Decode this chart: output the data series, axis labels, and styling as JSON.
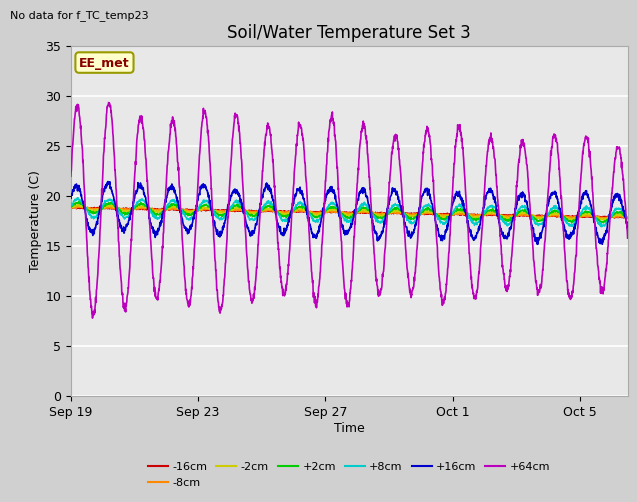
{
  "title": "Soil/Water Temperature Set 3",
  "no_data_label": "No data for f_TC_temp23",
  "xlabel": "Time",
  "ylabel": "Temperature (C)",
  "ylim": [
    0,
    35
  ],
  "yticks": [
    0,
    5,
    10,
    15,
    20,
    25,
    30,
    35
  ],
  "xtick_labels": [
    "Sep 19",
    "Sep 23",
    "Sep 27",
    "Oct 1",
    "Oct 5"
  ],
  "xtick_positions": [
    0,
    4,
    8,
    12,
    16
  ],
  "xlim": [
    0,
    17.5
  ],
  "legend_label_box": "EE_met",
  "legend_entries": [
    "-16cm",
    "-8cm",
    "-2cm",
    "+2cm",
    "+8cm",
    "+16cm",
    "+64cm"
  ],
  "line_colors": {
    "-16cm": "#cc0000",
    "-8cm": "#ff8800",
    "-2cm": "#cccc00",
    "+2cm": "#00cc00",
    "+8cm": "#00cccc",
    "+16cm": "#0000cc",
    "+64cm": "#bb00bb"
  },
  "fig_bg": "#d0d0d0",
  "plot_bg": "#e8e8e8",
  "grid_color": "#ffffff",
  "title_fontsize": 12,
  "axis_label_fontsize": 9,
  "tick_fontsize": 9,
  "legend_box_facecolor": "#ffffcc",
  "legend_box_edgecolor": "#999900",
  "legend_box_textcolor": "#880000"
}
